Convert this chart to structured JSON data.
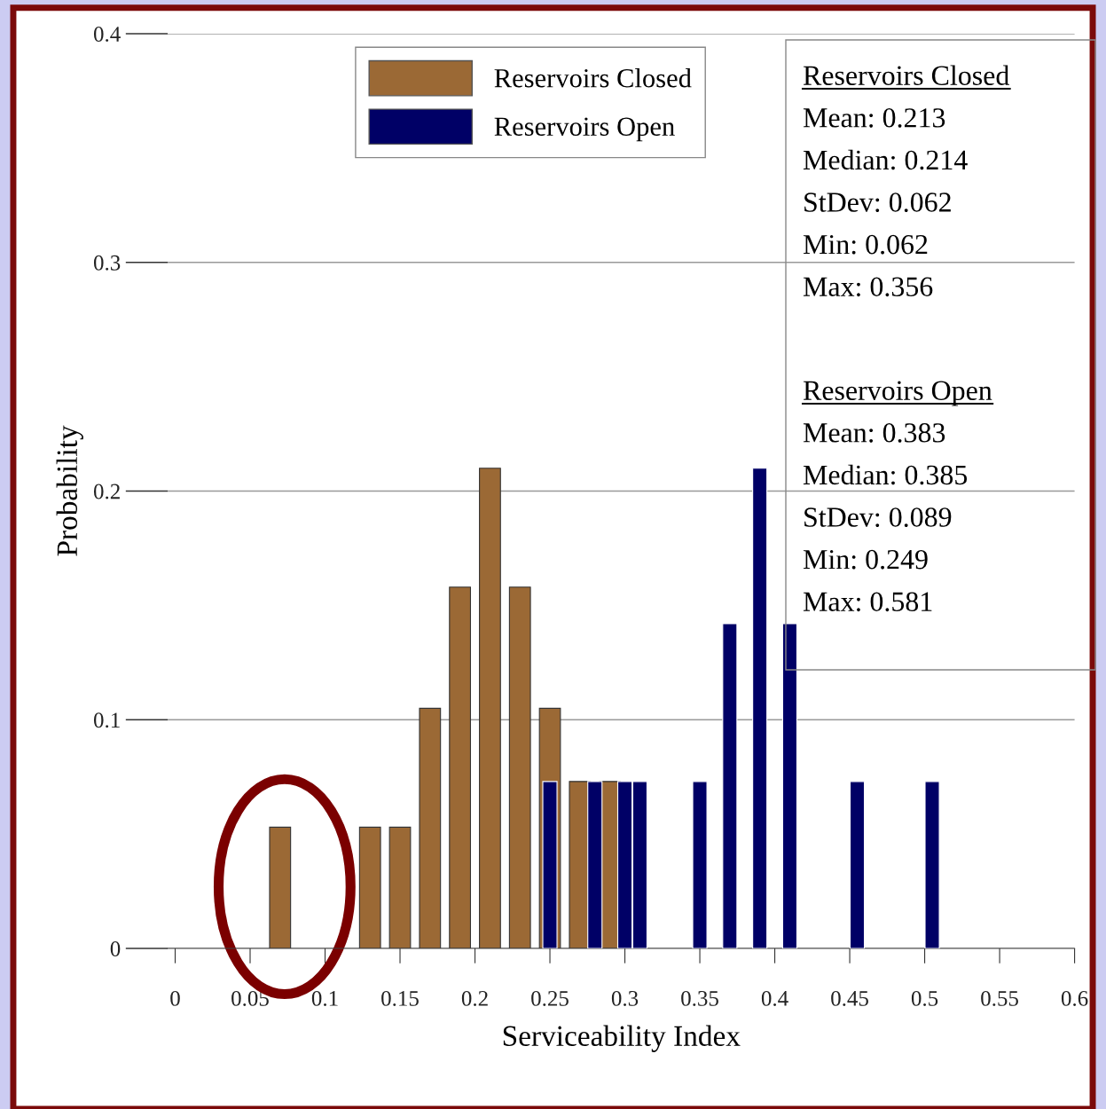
{
  "chart_data": {
    "type": "bar",
    "xlabel": "Serviceability Index",
    "ylabel": "Probability",
    "series": [
      {
        "name": "Reservoirs Closed",
        "color": "#9b6935",
        "x": [
          0.07,
          0.13,
          0.15,
          0.17,
          0.19,
          0.21,
          0.23,
          0.25,
          0.27,
          0.29
        ],
        "values": [
          0.053,
          0.053,
          0.053,
          0.105,
          0.158,
          0.21,
          0.158,
          0.105,
          0.073,
          0.073
        ]
      },
      {
        "name": "Reservoirs Open",
        "color": "#000066",
        "x": [
          0.25,
          0.28,
          0.3,
          0.31,
          0.35,
          0.37,
          0.39,
          0.41,
          0.455,
          0.505
        ],
        "values": [
          0.073,
          0.073,
          0.073,
          0.073,
          0.073,
          0.142,
          0.21,
          0.142,
          0.073,
          0.073
        ]
      }
    ],
    "xlim": [
      -0.005,
      0.6
    ],
    "xticks": [
      0,
      0.05,
      0.1,
      0.15,
      0.2,
      0.25,
      0.3,
      0.35,
      0.4,
      0.45,
      0.5,
      0.55,
      0.6
    ],
    "ylim": [
      0,
      0.4
    ],
    "yticks": [
      0,
      0.1,
      0.2,
      0.3,
      0.4
    ],
    "grid": "y",
    "legend": "top",
    "annotations": [
      "Reservoirs Closed",
      "Mean: 0.213",
      "Median: 0.214",
      "StDev: 0.062",
      "Min: 0.062",
      "Max: 0.356",
      "Reservoirs Open",
      "Mean: 0.383",
      "Median: 0.385",
      "StDev: 0.089",
      "Min: 0.249",
      "Max: 0.581"
    ]
  }
}
